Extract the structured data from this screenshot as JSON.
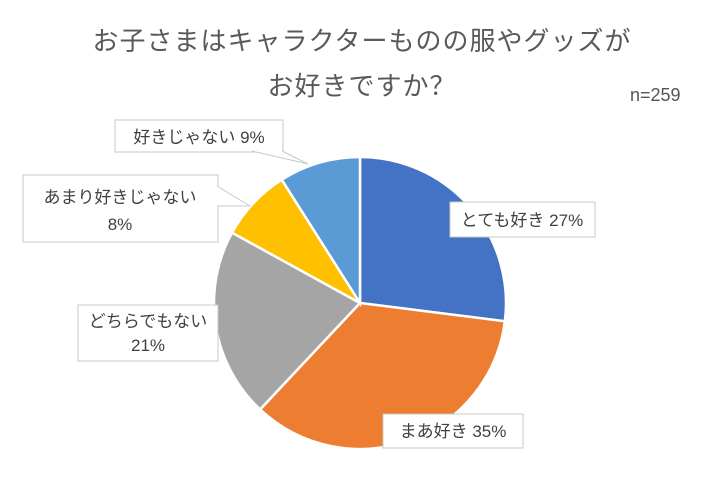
{
  "chart_data": {
    "type": "pie",
    "title_lines": [
      "お子さまはキャラクターものの服やグッズが",
      "お好きですか？"
    ],
    "title": "お子さまはキャラクターものの服やグッズがお好きですか？",
    "sample_size": "n=259",
    "unit": "%",
    "start_angle_deg": 0,
    "direction": "clockwise",
    "label_style": "outside-callout",
    "slice_gap_color": "#FFFFFF",
    "slices": [
      {
        "slug": "very-much",
        "label": "とても好き",
        "value": 27,
        "color": "#4472C4",
        "callout_lines": [
          "とても好き 27%"
        ]
      },
      {
        "slug": "somewhat",
        "label": "まあ好き",
        "value": 35,
        "color": "#ED7D31",
        "callout_lines": [
          "まあ好き 35%"
        ]
      },
      {
        "slug": "neither",
        "label": "どちらでもない",
        "value": 21,
        "color": "#A5A5A5",
        "callout_lines": [
          "どちらでもない",
          "21%"
        ]
      },
      {
        "slug": "not-really",
        "label": "あまり好きじゃない",
        "value": 8,
        "color": "#FFC000",
        "callout_lines": [
          "あまり好きじゃない",
          "8%"
        ]
      },
      {
        "slug": "not-at-all",
        "label": "好きじゃない",
        "value": 9,
        "color": "#5B9BD5",
        "callout_lines": [
          "好きじゃない 9%"
        ]
      }
    ],
    "colors": {
      "background": "#FFFFFF",
      "title_text": "#595959",
      "label_text": "#404040",
      "callout_border": "#C8C8C8"
    }
  }
}
